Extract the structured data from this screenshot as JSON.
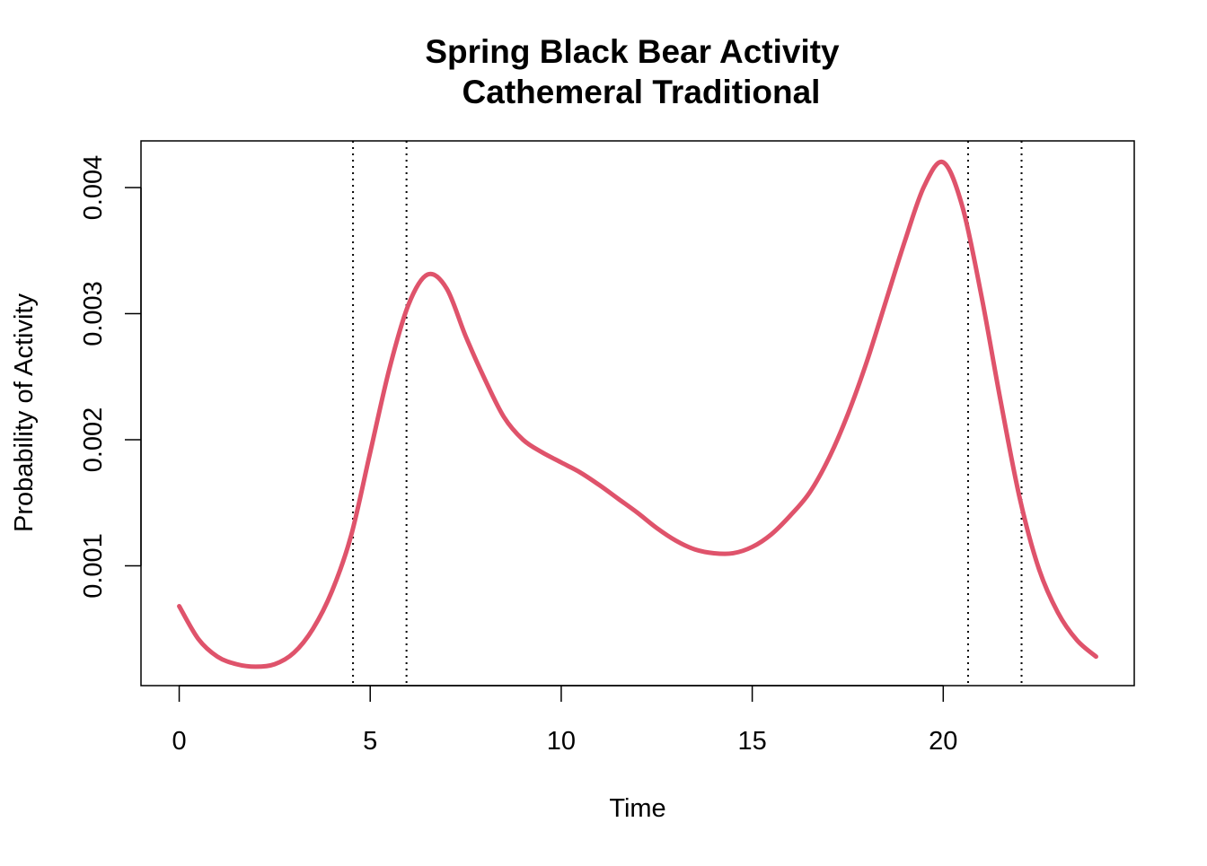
{
  "chart_data": {
    "type": "line",
    "title": "Spring Black Bear Activity",
    "subtitle": "Cathemeral Traditional",
    "xlabel": "Time",
    "ylabel": "Probability of Activity",
    "xlim": [
      -1,
      25
    ],
    "ylim": [
      5e-05,
      0.00437
    ],
    "x_ticks": [
      0,
      5,
      10,
      15,
      20
    ],
    "x_tick_labels": [
      "0",
      "5",
      "10",
      "15",
      "20"
    ],
    "y_ticks": [
      0.001,
      0.002,
      0.003,
      0.004
    ],
    "y_tick_labels": [
      "0.001",
      "0.002",
      "0.003",
      "0.004"
    ],
    "grid": false,
    "legend": "none",
    "line_color": "#df536b",
    "reference_line_color": "#000000",
    "series": [
      {
        "x": [
          0,
          0.5,
          1,
          1.5,
          2,
          2.5,
          3,
          3.5,
          4,
          4.5,
          5,
          5.5,
          6,
          6.5,
          7,
          7.5,
          8,
          8.5,
          9,
          9.5,
          10,
          10.5,
          11,
          11.5,
          12,
          12.5,
          13,
          13.5,
          14,
          14.5,
          15,
          15.5,
          16,
          16.5,
          17,
          17.5,
          18,
          18.5,
          19,
          19.5,
          20,
          20.5,
          21,
          21.5,
          22,
          22.5,
          23,
          23.5,
          24
        ],
        "y": [
          0.00068,
          0.00042,
          0.00028,
          0.00022,
          0.0002,
          0.00022,
          0.00031,
          0.0005,
          0.0008,
          0.00124,
          0.0019,
          0.00256,
          0.00307,
          0.00331,
          0.0032,
          0.00282,
          0.00248,
          0.00218,
          0.002,
          0.0019,
          0.00182,
          0.00174,
          0.00164,
          0.00153,
          0.00142,
          0.0013,
          0.0012,
          0.00113,
          0.0011,
          0.0011,
          0.00115,
          0.00125,
          0.0014,
          0.00158,
          0.00185,
          0.0022,
          0.00262,
          0.0031,
          0.00358,
          0.00401,
          0.0042,
          0.00385,
          0.00314,
          0.00231,
          0.00154,
          0.00098,
          0.00063,
          0.00041,
          0.00028
        ]
      }
    ],
    "reference_lines_x": [
      4.55,
      5.95,
      20.65,
      22.05
    ]
  }
}
